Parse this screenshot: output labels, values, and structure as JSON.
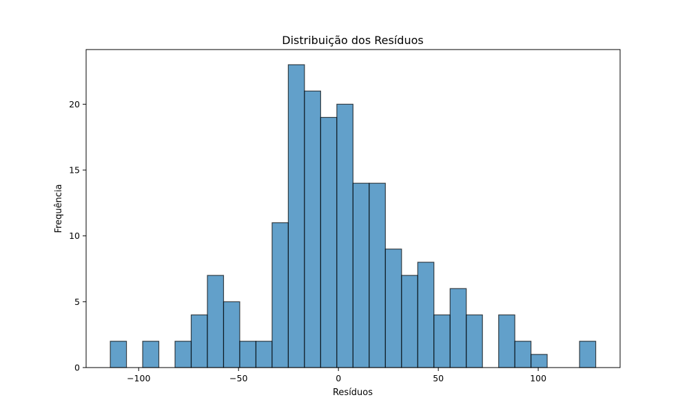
{
  "chart_data": {
    "type": "bar",
    "title": "Distribuição dos Resíduos",
    "xlabel": "Resíduos",
    "ylabel": "Frequência",
    "bin_width": 8.1,
    "bins": [
      {
        "x0": -114.2,
        "count": 2
      },
      {
        "x0": -106.1,
        "count": 0
      },
      {
        "x0": -98.0,
        "count": 2
      },
      {
        "x0": -89.9,
        "count": 0
      },
      {
        "x0": -81.8,
        "count": 2
      },
      {
        "x0": -73.7,
        "count": 4
      },
      {
        "x0": -65.6,
        "count": 7
      },
      {
        "x0": -57.5,
        "count": 5
      },
      {
        "x0": -49.4,
        "count": 2
      },
      {
        "x0": -41.3,
        "count": 2
      },
      {
        "x0": -33.2,
        "count": 11
      },
      {
        "x0": -25.1,
        "count": 23
      },
      {
        "x0": -17.0,
        "count": 21
      },
      {
        "x0": -8.9,
        "count": 19
      },
      {
        "x0": -0.8,
        "count": 20
      },
      {
        "x0": 7.3,
        "count": 14
      },
      {
        "x0": 15.4,
        "count": 14
      },
      {
        "x0": 23.5,
        "count": 9
      },
      {
        "x0": 31.6,
        "count": 7
      },
      {
        "x0": 39.7,
        "count": 8
      },
      {
        "x0": 47.8,
        "count": 4
      },
      {
        "x0": 55.9,
        "count": 6
      },
      {
        "x0": 64.0,
        "count": 4
      },
      {
        "x0": 72.1,
        "count": 0
      },
      {
        "x0": 80.2,
        "count": 4
      },
      {
        "x0": 88.3,
        "count": 2
      },
      {
        "x0": 96.4,
        "count": 1
      },
      {
        "x0": 104.5,
        "count": 0
      },
      {
        "x0": 112.6,
        "count": 0
      },
      {
        "x0": 120.7,
        "count": 2
      }
    ],
    "xlim": [
      -126.3,
      141.0
    ],
    "ylim": [
      0,
      24.15
    ],
    "xticks": [
      {
        "value": -100,
        "label": "−100"
      },
      {
        "value": -50,
        "label": "−50"
      },
      {
        "value": 0,
        "label": "0"
      },
      {
        "value": 50,
        "label": "50"
      },
      {
        "value": 100,
        "label": "100"
      }
    ],
    "yticks": [
      {
        "value": 0,
        "label": "0"
      },
      {
        "value": 5,
        "label": "5"
      },
      {
        "value": 10,
        "label": "10"
      },
      {
        "value": 15,
        "label": "15"
      },
      {
        "value": 20,
        "label": "20"
      }
    ],
    "grid": false,
    "legend": false,
    "colors": {
      "bar_fill": "#1f77b4",
      "bar_opacity": 0.7,
      "bar_edge": "#000000"
    }
  }
}
